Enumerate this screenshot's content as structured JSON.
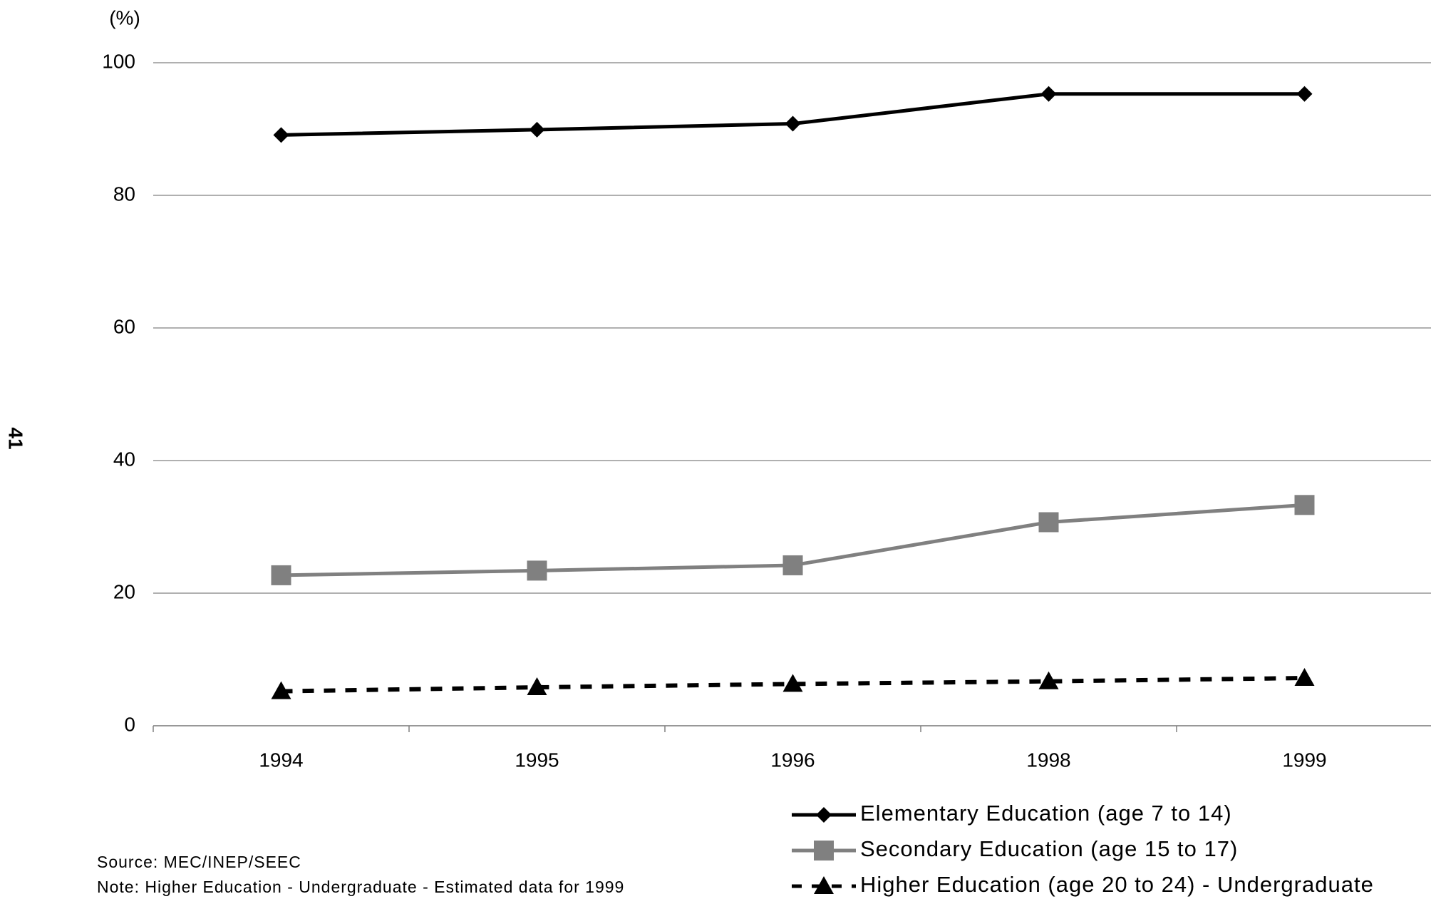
{
  "chart_data": {
    "type": "line",
    "y_axis_label": "(%)",
    "page_number": "41",
    "categories": [
      "1994",
      "1995",
      "1996",
      "1998",
      "1999"
    ],
    "series": [
      {
        "name": "Elementary Education (age 7 to 14)",
        "color": "#000000",
        "dashed": false,
        "marker": "diamond",
        "values": [
          89.1,
          89.9,
          90.8,
          95.3,
          95.3
        ]
      },
      {
        "name": "Secondary Education (age 15 to 17)",
        "color": "#808080",
        "dashed": false,
        "marker": "square",
        "values": [
          22.7,
          23.4,
          24.2,
          30.7,
          33.3
        ]
      },
      {
        "name": "Higher Education (age 20 to 24) - Undergraduate",
        "color": "#000000",
        "dashed": true,
        "marker": "triangle",
        "values": [
          5.2,
          5.8,
          6.3,
          6.7,
          7.2
        ]
      }
    ],
    "ylim": [
      0,
      100
    ],
    "yticks": [
      0,
      20,
      40,
      60,
      80,
      100
    ],
    "grid": true,
    "source": "Source: MEC/INEP/SEEC",
    "note": "Note: Higher Education - Undergraduate - Estimated data for 1999"
  }
}
